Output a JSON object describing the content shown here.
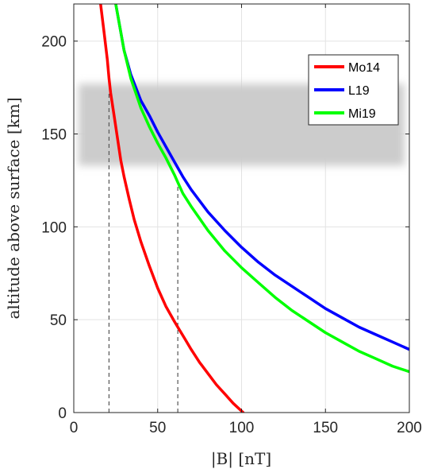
{
  "chart_data": {
    "type": "line",
    "xlabel": "|B| [nT]",
    "ylabel": "altitude above surface [km]",
    "xlim": [
      0,
      200
    ],
    "ylim": [
      0,
      220
    ],
    "xticks": [
      0,
      50,
      100,
      150,
      200
    ],
    "yticks": [
      0,
      50,
      100,
      150,
      200
    ],
    "grid": true,
    "legend_position": "top-right",
    "series": [
      {
        "name": "Mo14",
        "color": "#ff0000",
        "points": [
          [
            16,
            220
          ],
          [
            18,
            205
          ],
          [
            20,
            190
          ],
          [
            21,
            180
          ],
          [
            22,
            172
          ],
          [
            24,
            160
          ],
          [
            26,
            148
          ],
          [
            28,
            136
          ],
          [
            30,
            127
          ],
          [
            33,
            115
          ],
          [
            36,
            104
          ],
          [
            40,
            92
          ],
          [
            45,
            79
          ],
          [
            50,
            67
          ],
          [
            55,
            57
          ],
          [
            60,
            49
          ],
          [
            62,
            46
          ],
          [
            66,
            40
          ],
          [
            70,
            34
          ],
          [
            75,
            27
          ],
          [
            80,
            21
          ],
          [
            85,
            15
          ],
          [
            90,
            10
          ],
          [
            95,
            5
          ],
          [
            101,
            0
          ]
        ]
      },
      {
        "name": "L19",
        "color": "#0000ff",
        "points": [
          [
            25,
            220
          ],
          [
            28,
            205
          ],
          [
            30,
            195
          ],
          [
            34,
            182
          ],
          [
            40,
            168
          ],
          [
            45,
            160
          ],
          [
            50,
            151
          ],
          [
            55,
            143
          ],
          [
            60,
            135
          ],
          [
            65,
            127
          ],
          [
            70,
            120
          ],
          [
            80,
            108
          ],
          [
            90,
            98
          ],
          [
            100,
            89
          ],
          [
            110,
            81
          ],
          [
            120,
            74
          ],
          [
            130,
            68
          ],
          [
            140,
            62
          ],
          [
            150,
            56
          ],
          [
            160,
            51
          ],
          [
            170,
            46
          ],
          [
            180,
            42
          ],
          [
            190,
            38
          ],
          [
            200,
            34
          ]
        ]
      },
      {
        "name": "Mi19",
        "color": "#00ff00",
        "points": [
          [
            25,
            220
          ],
          [
            28,
            205
          ],
          [
            30,
            195
          ],
          [
            34,
            180
          ],
          [
            40,
            164
          ],
          [
            45,
            154
          ],
          [
            50,
            145
          ],
          [
            55,
            137
          ],
          [
            60,
            128
          ],
          [
            62,
            124
          ],
          [
            65,
            118
          ],
          [
            70,
            111
          ],
          [
            80,
            98
          ],
          [
            90,
            87
          ],
          [
            100,
            78
          ],
          [
            110,
            70
          ],
          [
            120,
            62
          ],
          [
            130,
            55
          ],
          [
            140,
            49
          ],
          [
            150,
            43
          ],
          [
            160,
            38
          ],
          [
            170,
            33
          ],
          [
            180,
            29
          ],
          [
            190,
            25
          ],
          [
            200,
            22
          ]
        ]
      }
    ],
    "reference_lines": [
      {
        "x": 21,
        "y_from": 0,
        "y_to": 172,
        "style": "dashed",
        "color": "#555555"
      },
      {
        "x": 62,
        "y_from": 0,
        "y_to": 124,
        "style": "dashed",
        "color": "#555555"
      }
    ],
    "shaded_band": {
      "y_from": 133,
      "y_to": 177,
      "color": "#cccccc"
    }
  }
}
